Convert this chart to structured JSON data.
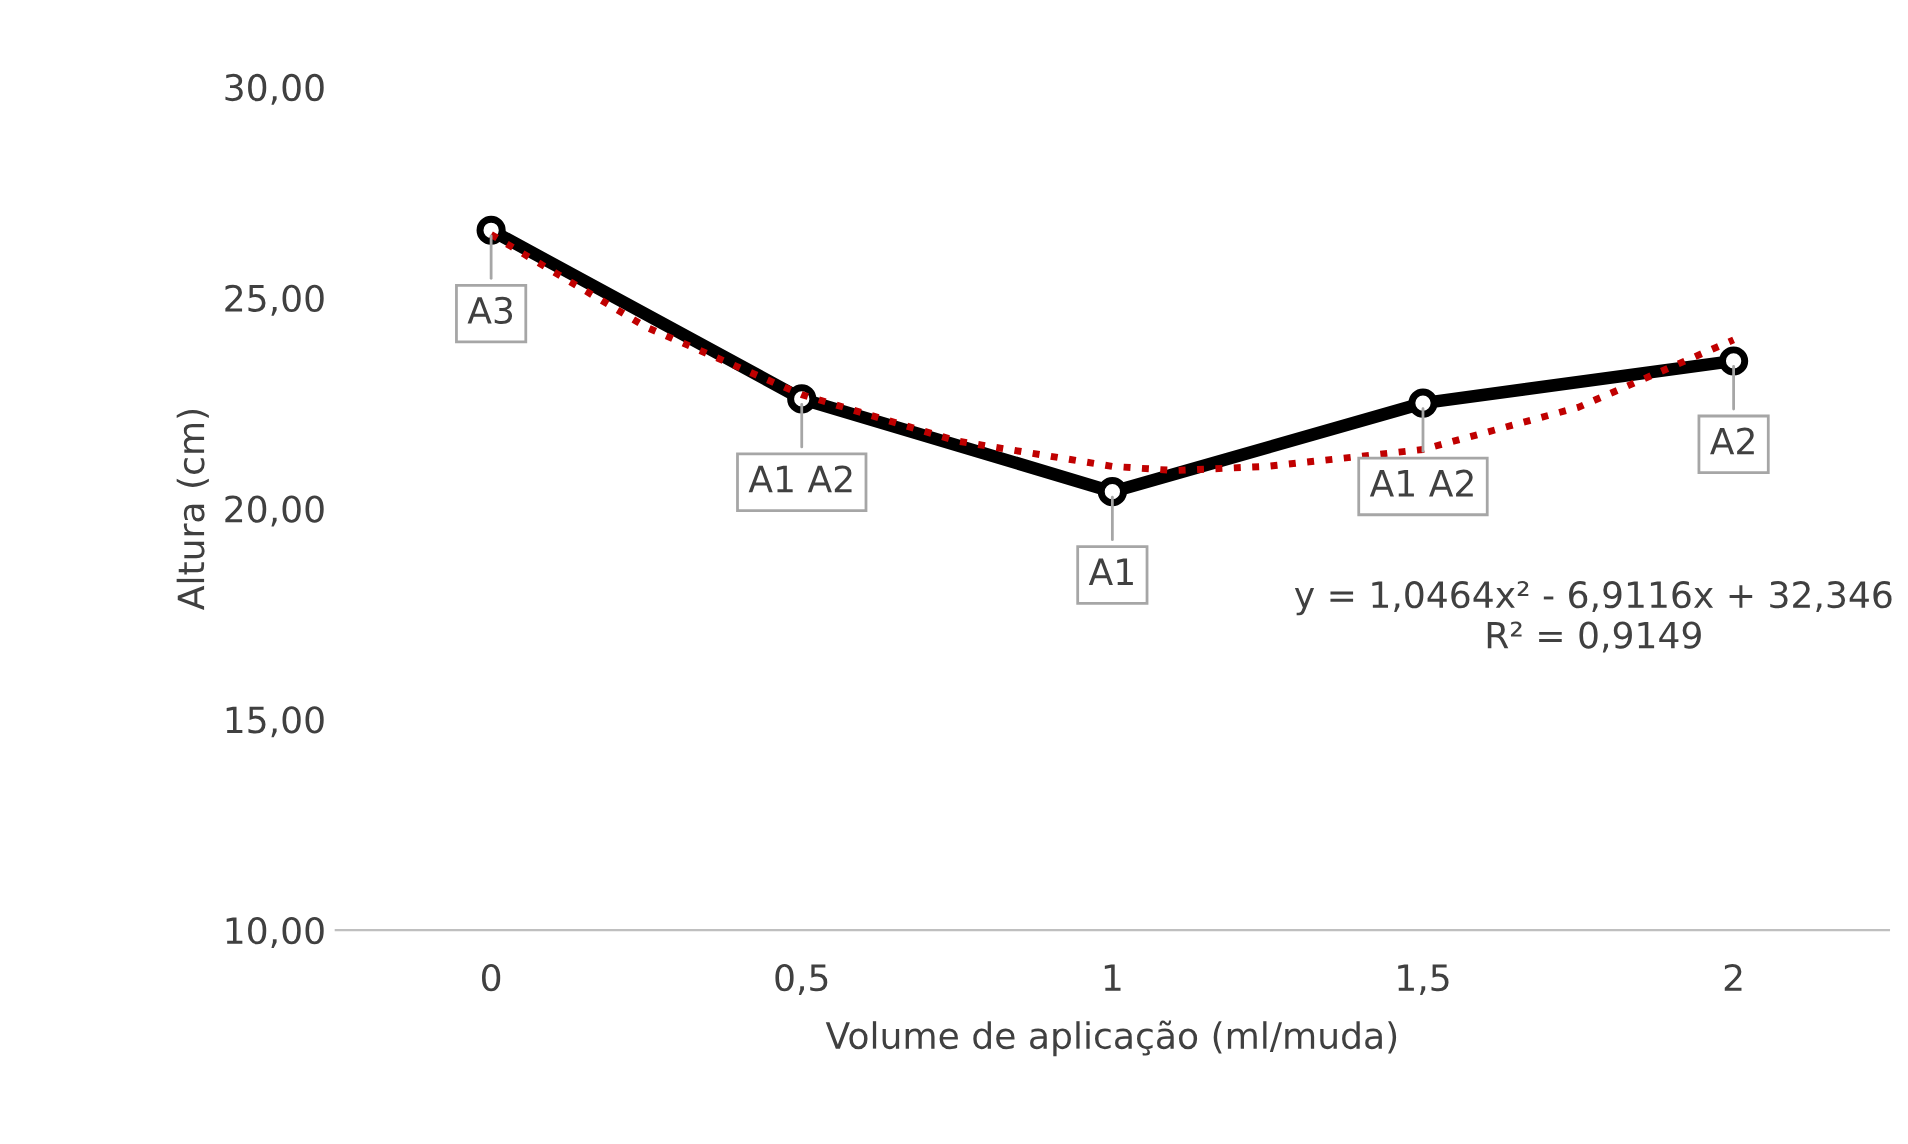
{
  "chart_data": {
    "type": "line",
    "xlabel": "Volume de aplicação (ml/muda)",
    "ylabel": "Altura (cm)",
    "x": [
      0,
      0.5,
      1,
      1.5,
      2
    ],
    "xlim": [
      -0.25,
      2.25
    ],
    "xticks": [
      0,
      {
        "value": 0.5,
        "label": "0,5"
      },
      1,
      {
        "value": 1.5,
        "label": "1,5"
      },
      2
    ],
    "ylim": [
      10,
      30
    ],
    "yticks": [
      {
        "value": 10,
        "label": "10,00"
      },
      {
        "value": 15,
        "label": "15,00"
      },
      {
        "value": 20,
        "label": "20,00"
      },
      {
        "value": 25,
        "label": "25,00"
      },
      {
        "value": 30,
        "label": "30,00"
      }
    ],
    "grid": false,
    "legend": false,
    "series": [
      {
        "color": "#000000",
        "marker": "circle",
        "line_style": "solid",
        "values": [
          26.6,
          22.6,
          20.4,
          22.5,
          23.5
        ]
      },
      {
        "type": "line",
        "color": "#c00000",
        "marker": "none",
        "line_style": "dotted",
        "x": [
          0,
          0.25,
          0.5,
          0.75,
          1,
          1.1,
          1.25,
          1.5,
          1.75,
          2
        ],
        "values": [
          26.5,
          24.3,
          22.7,
          21.6,
          21.0,
          20.9,
          21.0,
          21.4,
          22.4,
          24.0
        ]
      }
    ],
    "annotations": [
      {
        "text": "A3",
        "x": 0,
        "y": 26.6
      },
      {
        "text": "A1 A2",
        "x": 0.5,
        "y": 22.6
      },
      {
        "text": "A1",
        "x": 1,
        "y": 20.4
      },
      {
        "text": "A1 A2",
        "x": 1.5,
        "y": 22.5
      },
      {
        "text": "A2",
        "x": 2,
        "y": 23.5
      },
      "y = 1,0464x² - 6,9116x + 32,346\nR² = 0,9149"
    ]
  }
}
